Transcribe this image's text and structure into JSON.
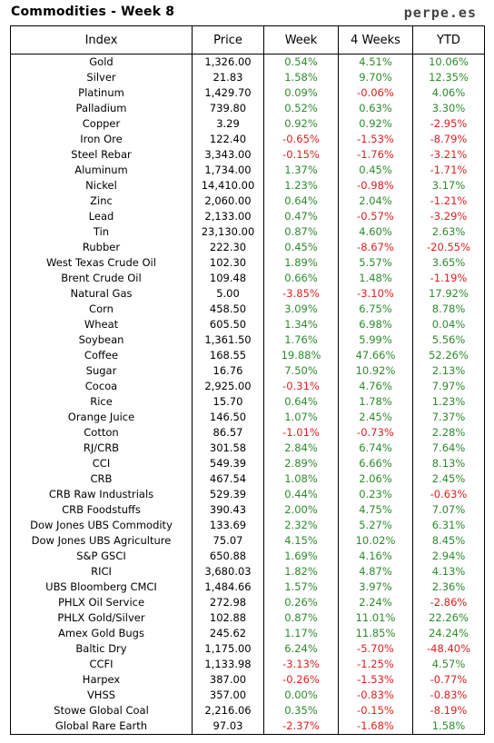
{
  "header": {
    "title": "Commodities - Week 8",
    "site": "perpe.es"
  },
  "columns": [
    "Index",
    "Price",
    "Week",
    "4 Weeks",
    "YTD"
  ],
  "colors": {
    "positive": "#2e8b2e",
    "negative": "#e0201e"
  },
  "rows": [
    [
      "Gold",
      "1,326.00",
      "0.54%",
      "4.51%",
      "10.06%"
    ],
    [
      "Silver",
      "21.83",
      "1.58%",
      "9.70%",
      "12.35%"
    ],
    [
      "Platinum",
      "1,429.70",
      "0.09%",
      "-0.06%",
      "4.06%"
    ],
    [
      "Palladium",
      "739.80",
      "0.52%",
      "0.63%",
      "3.30%"
    ],
    [
      "Copper",
      "3.29",
      "0.92%",
      "0.92%",
      "-2.95%"
    ],
    [
      "Iron Ore",
      "122.40",
      "-0.65%",
      "-1.53%",
      "-8.79%"
    ],
    [
      "Steel Rebar",
      "3,343.00",
      "-0.15%",
      "-1.76%",
      "-3.21%"
    ],
    [
      "Aluminum",
      "1,734.00",
      "1.37%",
      "0.45%",
      "-1.71%"
    ],
    [
      "Nickel",
      "14,410.00",
      "1.23%",
      "-0.98%",
      "3.17%"
    ],
    [
      "Zinc",
      "2,060.00",
      "0.64%",
      "2.04%",
      "-1.21%"
    ],
    [
      "Lead",
      "2,133.00",
      "0.47%",
      "-0.57%",
      "-3.29%"
    ],
    [
      "Tin",
      "23,130.00",
      "0.87%",
      "4.60%",
      "2.63%"
    ],
    [
      "Rubber",
      "222.30",
      "0.45%",
      "-8.67%",
      "-20.55%"
    ],
    [
      "West Texas Crude Oil",
      "102.30",
      "1.89%",
      "5.57%",
      "3.65%"
    ],
    [
      "Brent Crude Oil",
      "109.48",
      "0.66%",
      "1.48%",
      "-1.19%"
    ],
    [
      "Natural Gas",
      "5.00",
      "-3.85%",
      "-3.10%",
      "17.92%"
    ],
    [
      "Corn",
      "458.50",
      "3.09%",
      "6.75%",
      "8.78%"
    ],
    [
      "Wheat",
      "605.50",
      "1.34%",
      "6.98%",
      "0.04%"
    ],
    [
      "Soybean",
      "1,361.50",
      "1.76%",
      "5.99%",
      "5.56%"
    ],
    [
      "Coffee",
      "168.55",
      "19.88%",
      "47.66%",
      "52.26%"
    ],
    [
      "Sugar",
      "16.76",
      "7.50%",
      "10.92%",
      "2.13%"
    ],
    [
      "Cocoa",
      "2,925.00",
      "-0.31%",
      "4.76%",
      "7.97%"
    ],
    [
      "Rice",
      "15.70",
      "0.64%",
      "1.78%",
      "1.23%"
    ],
    [
      "Orange Juice",
      "146.50",
      "1.07%",
      "2.45%",
      "7.37%"
    ],
    [
      "Cotton",
      "86.57",
      "-1.01%",
      "-0.73%",
      "2.28%"
    ],
    [
      "RJ/CRB",
      "301.58",
      "2.84%",
      "6.74%",
      "7.64%"
    ],
    [
      "CCI",
      "549.39",
      "2.89%",
      "6.66%",
      "8.13%"
    ],
    [
      "CRB",
      "467.54",
      "1.08%",
      "2.06%",
      "2.45%"
    ],
    [
      "CRB Raw Industrials",
      "529.39",
      "0.44%",
      "0.23%",
      "-0.63%"
    ],
    [
      "CRB Foodstuffs",
      "390.43",
      "2.00%",
      "4.75%",
      "7.07%"
    ],
    [
      "Dow Jones UBS Commodity",
      "133.69",
      "2.32%",
      "5.27%",
      "6.31%"
    ],
    [
      "Dow Jones UBS Agriculture",
      "75.07",
      "4.15%",
      "10.02%",
      "8.45%"
    ],
    [
      "S&P GSCI",
      "650.88",
      "1.69%",
      "4.16%",
      "2.94%"
    ],
    [
      "RICI",
      "3,680.03",
      "1.82%",
      "4.87%",
      "4.13%"
    ],
    [
      "UBS Bloomberg CMCI",
      "1,484.66",
      "1.57%",
      "3.97%",
      "2.36%"
    ],
    [
      "PHLX Oil Service",
      "272.98",
      "0.26%",
      "2.24%",
      "-2.86%"
    ],
    [
      "PHLX Gold/Silver",
      "102.88",
      "0.87%",
      "11.01%",
      "22.26%"
    ],
    [
      "Amex Gold Bugs",
      "245.62",
      "1.17%",
      "11.85%",
      "24.24%"
    ],
    [
      "Baltic Dry",
      "1,175.00",
      "6.24%",
      "-5.70%",
      "-48.40%"
    ],
    [
      "CCFI",
      "1,133.98",
      "-3.13%",
      "-1.25%",
      "4.57%"
    ],
    [
      "Harpex",
      "387.00",
      "-0.26%",
      "-1.53%",
      "-0.77%"
    ],
    [
      "VHSS",
      "357.00",
      "0.00%",
      "-0.83%",
      "-0.83%"
    ],
    [
      "Stowe Global Coal",
      "2,216.06",
      "0.35%",
      "-0.15%",
      "-8.19%"
    ],
    [
      "Global Rare Earth",
      "97.03",
      "-2.37%",
      "-1.68%",
      "1.58%"
    ]
  ]
}
